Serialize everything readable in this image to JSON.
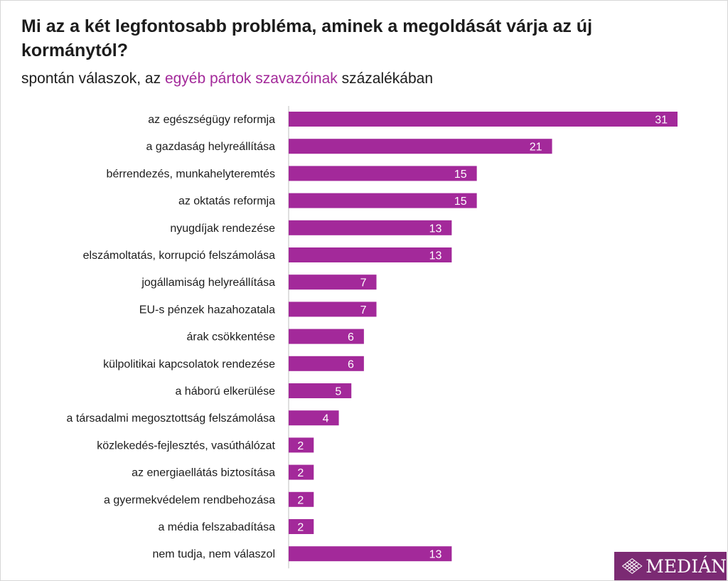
{
  "title": "Mi az a két legfontosabb probléma, aminek a megoldását várja az új kormánytól?",
  "subtitle": {
    "pre": "spontán válaszok, az ",
    "highlight": "egyéb pártok szavazóinak",
    "post": " százalékában"
  },
  "colors": {
    "bar": "#a3299a",
    "highlight": "#a3299a",
    "axis": "#bfbfbf",
    "logo_bg": "#7b2a73"
  },
  "logo": {
    "text": "MEDIÁN",
    "icon": "median-diamond-icon"
  },
  "chart_data": {
    "type": "bar",
    "orientation": "horizontal",
    "categories": [
      "az egészségügy reformja",
      "a gazdaság helyreállítása",
      "bérrendezés, munkahelyteremtés",
      "az oktatás reformja",
      "nyugdíjak rendezése",
      "elszámoltatás, korrupció felszámolása",
      "jogállamiság helyreállítása",
      "EU-s pénzek hazahozatala",
      "árak csökkentése",
      "külpolitikai kapcsolatok rendezése",
      "a háború elkerülése",
      "a társadalmi megosztottság felszámolása",
      "közlekedés-fejlesztés, vasúthálózat",
      "az energiaellátás biztosítása",
      "a gyermekvédelem rendbehozása",
      "a média felszabadítása",
      "nem tudja, nem válaszol"
    ],
    "values": [
      31,
      21,
      15,
      15,
      13,
      13,
      7,
      7,
      6,
      6,
      5,
      4,
      2,
      2,
      2,
      2,
      13
    ],
    "xlim": [
      0,
      31
    ],
    "data_labels": true,
    "grid": false,
    "legend": "none"
  }
}
